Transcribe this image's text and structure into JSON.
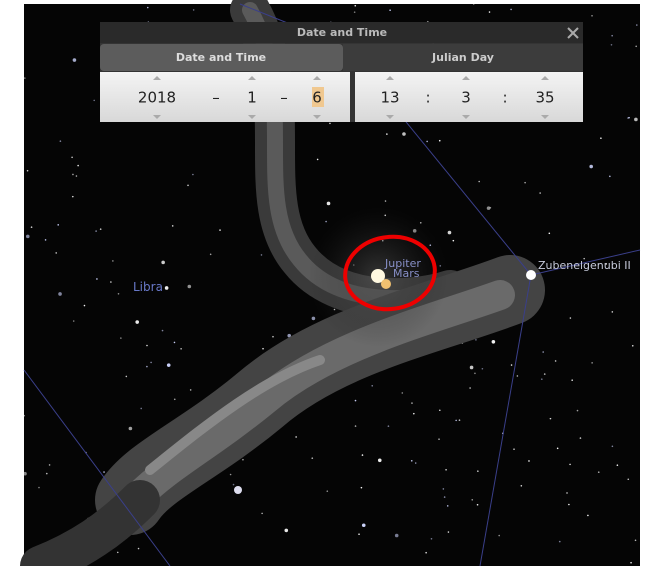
{
  "dialog": {
    "title": "Date and Time",
    "tabs": [
      "Date and Time",
      "Julian Day"
    ],
    "date": {
      "year": 2018,
      "month": 1,
      "day": 6,
      "separators": [
        "–",
        "–"
      ]
    },
    "time": {
      "hour": 13,
      "minute": 3,
      "second": 35,
      "separators": [
        ":",
        ":"
      ]
    }
  },
  "sky": {
    "constellation": "Libra",
    "planets": [
      "Jupiter",
      "Mars"
    ],
    "star": "Zubenelgenubi II"
  }
}
